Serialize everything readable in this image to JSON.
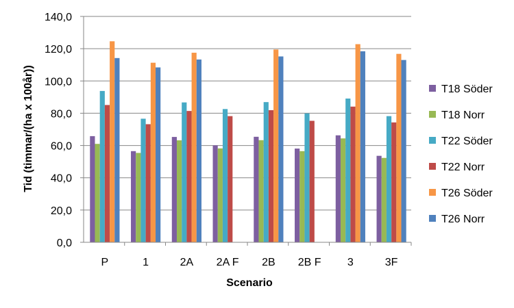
{
  "chart_data": {
    "type": "bar",
    "title": "",
    "xlabel": "Scenario",
    "ylabel": "Tid (timmar/(ha x 100år))",
    "ylim": [
      0,
      140
    ],
    "ytick_step": 20,
    "ytick_labels": [
      "0,0",
      "20,0",
      "40,0",
      "60,0",
      "80,0",
      "100,0",
      "120,0",
      "140,0"
    ],
    "grid": true,
    "legend_position": "right",
    "categories": [
      "P",
      "1",
      "2A",
      "2A F",
      "2B",
      "2B F",
      "3",
      "3F"
    ],
    "series": [
      {
        "name": "T18 Söder",
        "color": "#7D5FA0",
        "values": [
          65.8,
          56.5,
          65.3,
          60.1,
          65.4,
          58.1,
          66.3,
          53.6
        ]
      },
      {
        "name": "T18 Norr",
        "color": "#98B954",
        "values": [
          61.0,
          55.4,
          63.2,
          58.2,
          63.3,
          56.5,
          64.4,
          52.3
        ]
      },
      {
        "name": "T22 Söder",
        "color": "#46AAC5",
        "values": [
          93.8,
          76.6,
          86.7,
          82.6,
          86.9,
          79.9,
          89.1,
          78.2
        ]
      },
      {
        "name": "T22 Norr",
        "color": "#BE4B48",
        "values": [
          85.1,
          73.2,
          81.4,
          78.2,
          81.9,
          75.3,
          84.1,
          74.3
        ]
      },
      {
        "name": "T26 Söder",
        "color": "#F79646",
        "values": [
          124.6,
          111.3,
          117.5,
          null,
          119.5,
          null,
          122.8,
          116.8
        ]
      },
      {
        "name": "T26 Norr",
        "color": "#4F81BD",
        "values": [
          114.2,
          108.4,
          113.3,
          null,
          115.2,
          null,
          118.4,
          113.0
        ]
      }
    ]
  }
}
